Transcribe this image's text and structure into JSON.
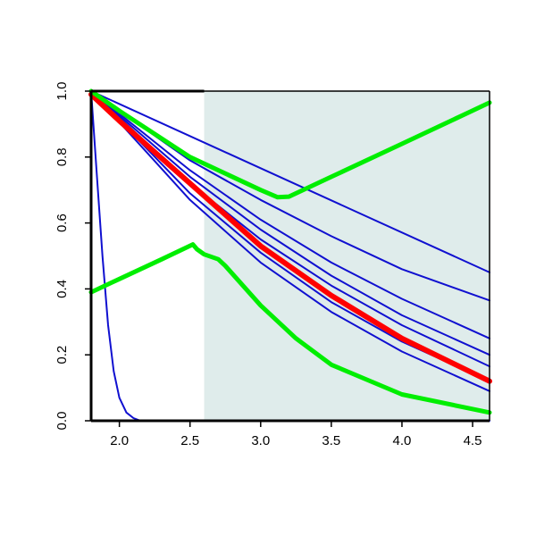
{
  "chart_data": {
    "type": "line",
    "title": "",
    "xlabel": "",
    "ylabel": "",
    "xlim": [
      1.8,
      4.62
    ],
    "ylim": [
      0,
      1
    ],
    "x_ticks": [
      2.0,
      2.5,
      3.0,
      3.5,
      4.0,
      4.5
    ],
    "x_tick_labels": [
      "2.0",
      "2.5",
      "3.0",
      "3.5",
      "4.0",
      "4.5"
    ],
    "y_ticks": [
      0.0,
      0.2,
      0.4,
      0.6,
      0.8,
      1.0
    ],
    "y_tick_labels": [
      "0.0",
      "0.2",
      "0.4",
      "0.6",
      "0.8",
      "1.0"
    ],
    "shaded_region": {
      "x_from": 2.6,
      "x_to": 4.62,
      "color": "#dfeceb"
    },
    "grid": false,
    "legend": "none",
    "colors": {
      "blue": "#1010d0",
      "red": "#ff0000",
      "green": "#00ee00",
      "axis": "#000000"
    },
    "series": [
      {
        "color": "blue",
        "width": 2,
        "x": [
          1.8,
          4.62
        ],
        "y": [
          1.0,
          0.45
        ]
      },
      {
        "color": "blue",
        "width": 2,
        "x": [
          1.8,
          2.5,
          3.0,
          3.5,
          4.0,
          4.62
        ],
        "y": [
          1.0,
          0.79,
          0.67,
          0.56,
          0.46,
          0.365
        ]
      },
      {
        "color": "blue",
        "width": 2,
        "x": [
          1.8,
          2.5,
          3.0,
          3.5,
          4.0,
          4.62
        ],
        "y": [
          1.0,
          0.76,
          0.61,
          0.48,
          0.37,
          0.25
        ]
      },
      {
        "color": "blue",
        "width": 2,
        "x": [
          1.8,
          2.5,
          3.0,
          3.5,
          4.0,
          4.62
        ],
        "y": [
          1.0,
          0.74,
          0.58,
          0.44,
          0.32,
          0.2
        ]
      },
      {
        "color": "blue",
        "width": 2,
        "x": [
          1.8,
          2.5,
          3.0,
          3.5,
          4.0,
          4.62
        ],
        "y": [
          1.0,
          0.72,
          0.55,
          0.41,
          0.29,
          0.165
        ]
      },
      {
        "color": "blue",
        "width": 2,
        "x": [
          1.8,
          2.5,
          3.0,
          3.5,
          4.0,
          4.62
        ],
        "y": [
          1.0,
          0.69,
          0.51,
          0.36,
          0.24,
          0.12
        ]
      },
      {
        "color": "blue",
        "width": 2,
        "x": [
          1.8,
          2.5,
          3.0,
          3.5,
          4.0,
          4.62
        ],
        "y": [
          1.0,
          0.67,
          0.48,
          0.33,
          0.21,
          0.09
        ]
      },
      {
        "color": "blue",
        "width": 2,
        "x": [
          1.8,
          1.84,
          1.88,
          1.92,
          1.96,
          2.0,
          2.05,
          2.1,
          2.15,
          4.62
        ],
        "y": [
          1.0,
          0.75,
          0.5,
          0.29,
          0.15,
          0.07,
          0.025,
          0.008,
          0.0,
          0.0
        ]
      },
      {
        "color": "red",
        "width": 6,
        "x": [
          1.8,
          2.0,
          2.5,
          3.0,
          3.5,
          4.0,
          4.62
        ],
        "y": [
          0.99,
          0.91,
          0.72,
          0.53,
          0.38,
          0.25,
          0.12
        ]
      },
      {
        "color": "green",
        "width": 5,
        "x": [
          1.8,
          2.0,
          2.5,
          3.0,
          3.12,
          3.2,
          3.5,
          4.0,
          4.62
        ],
        "y": [
          1.0,
          0.94,
          0.8,
          0.7,
          0.678,
          0.68,
          0.74,
          0.84,
          0.965
        ]
      },
      {
        "color": "green",
        "width": 5,
        "x": [
          1.8,
          2.0,
          2.3,
          2.52,
          2.55,
          2.6,
          2.7,
          2.75,
          3.0,
          3.25,
          3.5,
          4.0,
          4.62
        ],
        "y": [
          0.39,
          0.43,
          0.49,
          0.535,
          0.52,
          0.505,
          0.49,
          0.47,
          0.35,
          0.25,
          0.17,
          0.08,
          0.025
        ]
      }
    ]
  }
}
